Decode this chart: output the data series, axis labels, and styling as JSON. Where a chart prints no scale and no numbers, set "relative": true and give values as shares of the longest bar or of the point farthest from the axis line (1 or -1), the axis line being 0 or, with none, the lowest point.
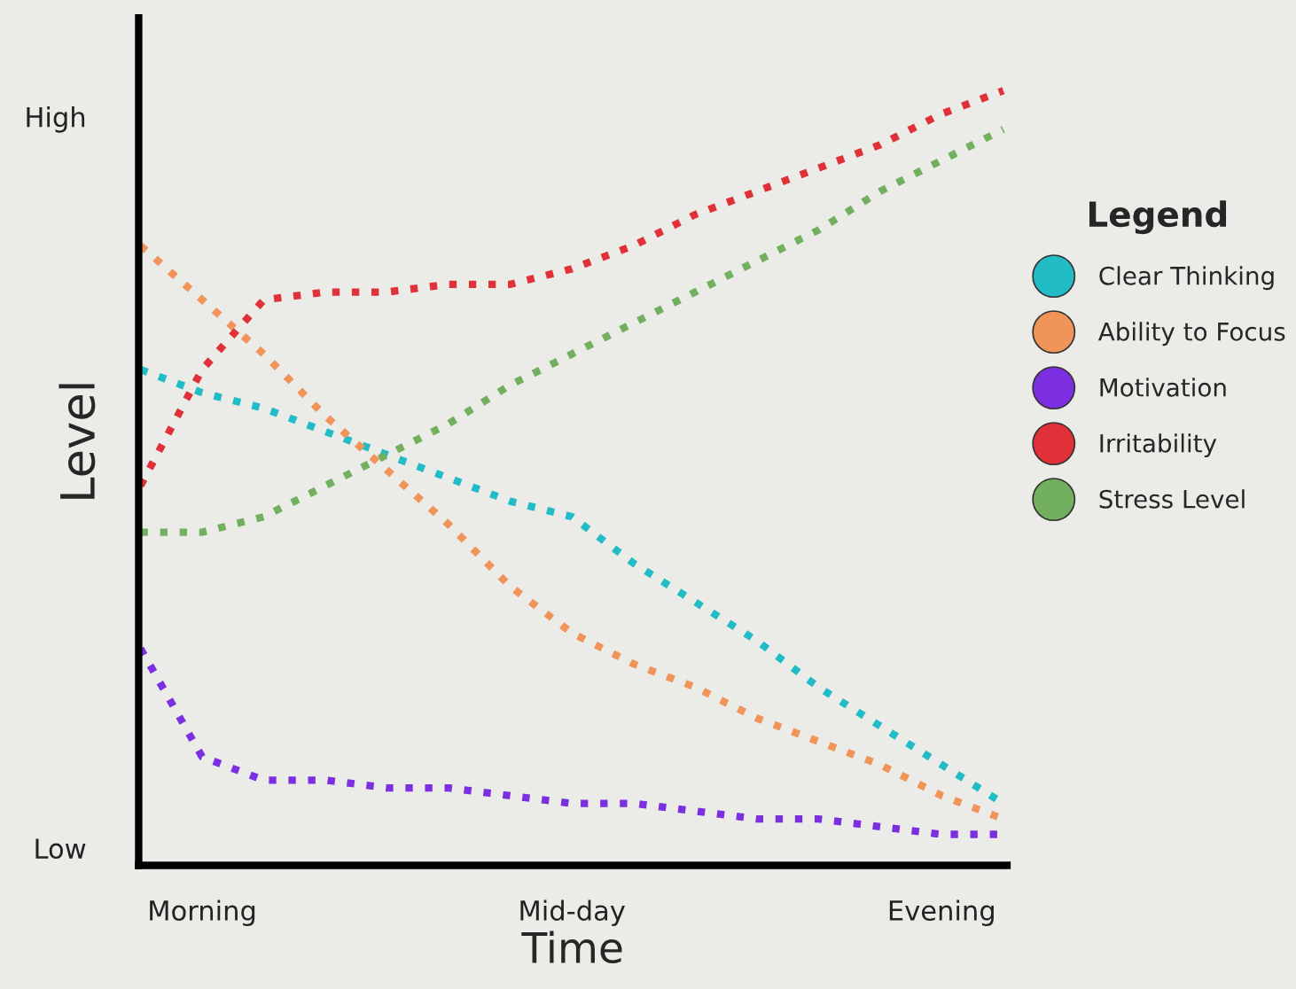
{
  "chart_data": {
    "type": "line",
    "relative": true,
    "xlabel": "Time",
    "ylabel": "Level",
    "legend_title": "Legend",
    "legend": "right",
    "line_style": "dotted",
    "grid": false,
    "categories": [
      null,
      "Morning",
      null,
      null,
      null,
      null,
      null,
      "Mid-day",
      null,
      null,
      null,
      null,
      null,
      "Evening",
      null
    ],
    "annotations": [
      "High",
      "Low"
    ],
    "series": [
      {
        "name": "Clear Thinking",
        "color": "#22bcc6",
        "values": [
          0.64,
          0.61,
          0.59,
          0.56,
          0.53,
          0.5,
          0.47,
          0.45,
          0.39,
          0.34,
          0.29,
          0.23,
          0.18,
          0.13,
          0.08
        ]
      },
      {
        "name": "Ability to Focus",
        "color": "#f0945a",
        "values": [
          0.8,
          0.73,
          0.66,
          0.58,
          0.51,
          0.44,
          0.36,
          0.3,
          0.26,
          0.23,
          0.19,
          0.16,
          0.13,
          0.09,
          0.06
        ]
      },
      {
        "name": "Motivation",
        "color": "#7b2fe0",
        "values": [
          0.28,
          0.14,
          0.11,
          0.11,
          0.1,
          0.1,
          0.09,
          0.08,
          0.08,
          0.07,
          0.06,
          0.06,
          0.05,
          0.04,
          0.04
        ]
      },
      {
        "name": "Irritability",
        "color": "#e03038",
        "values": [
          0.49,
          0.64,
          0.73,
          0.74,
          0.74,
          0.75,
          0.75,
          0.77,
          0.8,
          0.84,
          0.87,
          0.9,
          0.93,
          0.97,
          1
        ]
      },
      {
        "name": "Stress Level",
        "color": "#72b060",
        "values": [
          0.43,
          0.43,
          0.45,
          0.49,
          0.53,
          0.57,
          0.62,
          0.66,
          0.7,
          0.74,
          0.78,
          0.82,
          0.87,
          0.91,
          0.95
        ]
      }
    ]
  }
}
